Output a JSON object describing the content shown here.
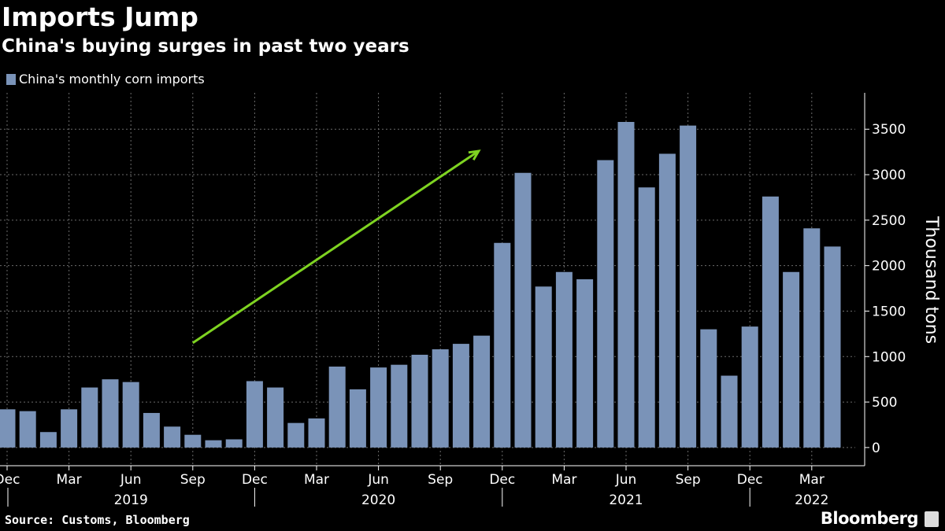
{
  "header": {
    "title": "Imports Jump",
    "subtitle": "China's buying surges in past two years"
  },
  "footer": {
    "source": "Source: Customs, Bloomberg",
    "brand": "Bloomberg"
  },
  "colors": {
    "bar": "#7a93b8",
    "arrow": "#7ed321",
    "background": "#000000",
    "grid": "#6b6b6b"
  },
  "chart_data": {
    "type": "bar",
    "legend": [
      "China's monthly corn imports"
    ],
    "ylabel": "Thousand tons",
    "ylim": [
      -200,
      3900
    ],
    "yticks": [
      0,
      500,
      1000,
      1500,
      2000,
      2500,
      3000,
      3500
    ],
    "ytick_labels": [
      "0",
      "500",
      "1000",
      "1500",
      "2000",
      "2500",
      "3000",
      "3500"
    ],
    "axis_side": "right",
    "grid": true,
    "categories": [
      "2018-12",
      "2019-01",
      "2019-02",
      "2019-03",
      "2019-04",
      "2019-05",
      "2019-06",
      "2019-07",
      "2019-08",
      "2019-09",
      "2019-10",
      "2019-11",
      "2019-12",
      "2020-01",
      "2020-02",
      "2020-03",
      "2020-04",
      "2020-05",
      "2020-06",
      "2020-07",
      "2020-08",
      "2020-09",
      "2020-10",
      "2020-11",
      "2020-12",
      "2021-01",
      "2021-02",
      "2021-03",
      "2021-04",
      "2021-05",
      "2021-06",
      "2021-07",
      "2021-08",
      "2021-09",
      "2021-10",
      "2021-11",
      "2021-12",
      "2022-01",
      "2022-02",
      "2022-03",
      "2022-04"
    ],
    "series": [
      {
        "name": "China's monthly corn imports",
        "values": [
          420,
          400,
          170,
          420,
          660,
          750,
          720,
          380,
          230,
          140,
          80,
          90,
          730,
          660,
          270,
          320,
          890,
          640,
          880,
          910,
          1020,
          1080,
          1140,
          1230,
          2250,
          3020,
          1770,
          1930,
          1850,
          3160,
          3580,
          2860,
          3230,
          3540,
          1300,
          790,
          1330,
          2760,
          1930,
          2410,
          2210
        ]
      }
    ],
    "xtick_labels": [
      {
        "month": "2018-12",
        "label": "Dec"
      },
      {
        "month": "2019-03",
        "label": "Mar"
      },
      {
        "month": "2019-06",
        "label": "Jun"
      },
      {
        "month": "2019-09",
        "label": "Sep"
      },
      {
        "month": "2019-12",
        "label": "Dec"
      },
      {
        "month": "2020-03",
        "label": "Mar"
      },
      {
        "month": "2020-06",
        "label": "Jun"
      },
      {
        "month": "2020-09",
        "label": "Sep"
      },
      {
        "month": "2020-12",
        "label": "Dec"
      },
      {
        "month": "2021-03",
        "label": "Mar"
      },
      {
        "month": "2021-06",
        "label": "Jun"
      },
      {
        "month": "2021-09",
        "label": "Sep"
      },
      {
        "month": "2021-12",
        "label": "Dec"
      },
      {
        "month": "2022-03",
        "label": "Mar"
      }
    ],
    "year_labels": [
      {
        "year": "2019",
        "center": "2019-06"
      },
      {
        "year": "2020",
        "center": "2020-06"
      },
      {
        "year": "2021",
        "center": "2021-06"
      },
      {
        "year": "2022",
        "center": "2022-03"
      }
    ],
    "year_separators": [
      "2019-12",
      "2020-12",
      "2021-12"
    ],
    "annotation": {
      "type": "arrow",
      "from": {
        "month": "2019-09",
        "value": 1150
      },
      "to": {
        "month": "2020-12",
        "value": 3260
      }
    }
  }
}
